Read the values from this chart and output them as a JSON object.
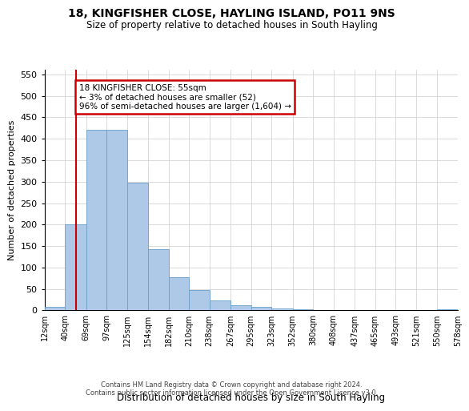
{
  "title": "18, KINGFISHER CLOSE, HAYLING ISLAND, PO11 9NS",
  "subtitle": "Size of property relative to detached houses in South Hayling",
  "xlabel": "Distribution of detached houses by size in South Hayling",
  "ylabel": "Number of detached properties",
  "footer1": "Contains HM Land Registry data © Crown copyright and database right 2024.",
  "footer2": "Contains public sector information licensed under the Open Government Licence v3.0.",
  "annotation_title": "18 KINGFISHER CLOSE: 55sqm",
  "annotation_line2": "← 3% of detached houses are smaller (52)",
  "annotation_line3": "96% of semi-detached houses are larger (1,604) →",
  "bar_color": "#aec9e8",
  "bar_edge_color": "#6a9ec8",
  "vline_color": "#cc0000",
  "annotation_box_color": "#cc0000",
  "bin_edges": [
    12,
    40,
    69,
    97,
    125,
    154,
    182,
    210,
    238,
    267,
    295,
    323,
    352,
    380,
    408,
    437,
    465,
    493,
    521,
    550,
    578
  ],
  "bin_labels": [
    "12sqm",
    "40sqm",
    "69sqm",
    "97sqm",
    "125sqm",
    "154sqm",
    "182sqm",
    "210sqm",
    "238sqm",
    "267sqm",
    "295sqm",
    "323sqm",
    "352sqm",
    "380sqm",
    "408sqm",
    "437sqm",
    "465sqm",
    "493sqm",
    "521sqm",
    "550sqm",
    "578sqm"
  ],
  "bar_heights": [
    8,
    200,
    420,
    420,
    298,
    143,
    77,
    48,
    23,
    12,
    8,
    4,
    2,
    1,
    1,
    0,
    0,
    0,
    0,
    3
  ],
  "vline_x": 55,
  "ylim": [
    0,
    560
  ],
  "yticks": [
    0,
    50,
    100,
    150,
    200,
    250,
    300,
    350,
    400,
    450,
    500,
    550
  ],
  "background_color": "#ffffff",
  "grid_color": "#cccccc",
  "title_fontsize": 10,
  "subtitle_fontsize": 8.5,
  "ylabel_fontsize": 8,
  "xlabel_fontsize": 8.5,
  "tick_fontsize": 7,
  "footer_fontsize": 6,
  "annotation_fontsize": 7.5
}
